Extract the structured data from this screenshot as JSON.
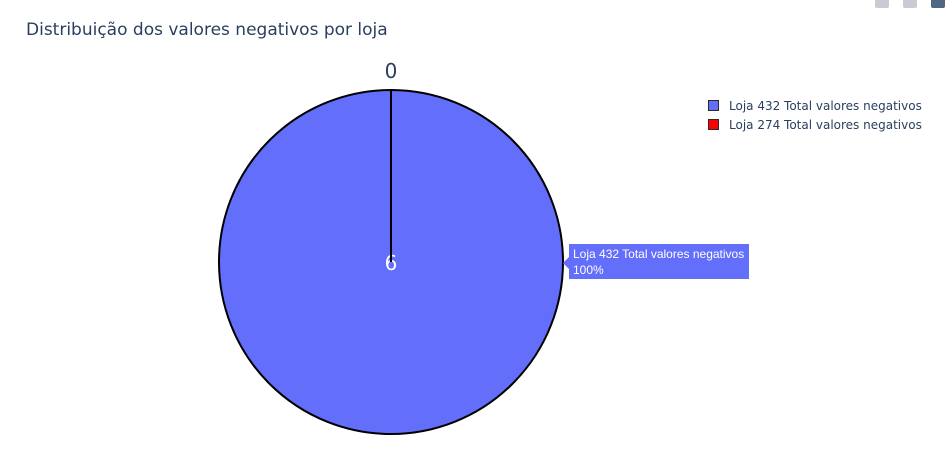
{
  "toolbar": {
    "icons": [
      "camera-icon",
      "zoom-icon",
      "plotly-logo-icon"
    ]
  },
  "chart_data": {
    "type": "pie",
    "title": "Distribuição dos valores negativos por loja",
    "labels": [
      "Loja 432 Total valores negativos",
      "Loja 274 Total valores negativos"
    ],
    "values": [
      6,
      0
    ],
    "colors": [
      "#636efa",
      "#ff0000"
    ],
    "slice_text": [
      "6",
      "0"
    ],
    "legend_position": "top-right",
    "hover": {
      "label": "Loja 432 Total valores negativos",
      "percent": "100%"
    }
  }
}
